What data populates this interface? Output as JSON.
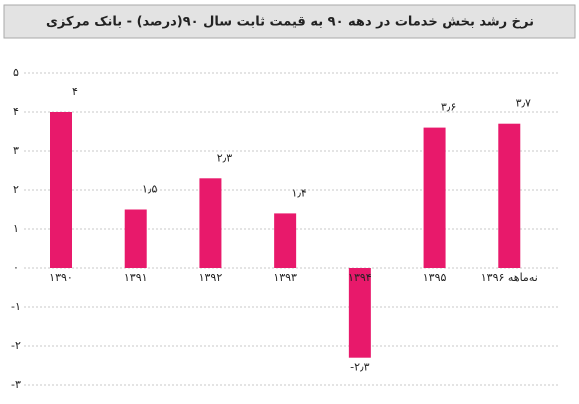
{
  "chart_data": {
    "type": "bar",
    "title": "نرخ رشد بخش خدمات در دهه ۹۰ به قیمت ثابت سال ۹۰(درصد) - بانک مرکزی",
    "categories": [
      "۱۳۹۰",
      "۱۳۹۱",
      "۱۳۹۲",
      "۱۳۹۳",
      "۱۳۹۴",
      "۱۳۹۵",
      "نه‌ماهه ۱۳۹۶"
    ],
    "values": [
      4,
      1.5,
      2.3,
      1.4,
      -2.3,
      3.6,
      3.7
    ],
    "value_labels": [
      "۴",
      "۱٫۵",
      "۲٫۳",
      "۱٫۴",
      "-۲٫۳",
      "۳٫۶",
      "۳٫۷"
    ],
    "color": "#e8196b",
    "ylim": [
      -3,
      5
    ],
    "yticks": [
      {
        "value": 5,
        "label": "۵"
      },
      {
        "value": 4,
        "label": "۴"
      },
      {
        "value": 3,
        "label": "۳"
      },
      {
        "value": 2,
        "label": "۲"
      },
      {
        "value": 1,
        "label": "۱"
      },
      {
        "value": 0,
        "label": "۰"
      },
      {
        "value": -1,
        "label": "-۱"
      },
      {
        "value": -2,
        "label": "-۲"
      },
      {
        "value": -3,
        "label": "-۳"
      }
    ],
    "grid": true
  }
}
